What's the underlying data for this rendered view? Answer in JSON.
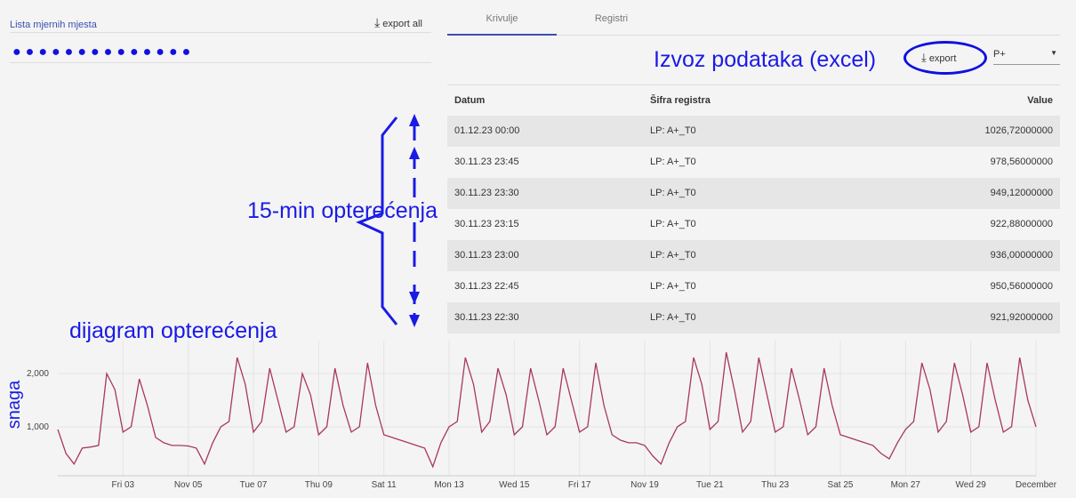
{
  "sidebar": {
    "title": "Lista mjernih mjesta",
    "export_all": "export all"
  },
  "tabs": [
    "Krivulje",
    "Registri"
  ],
  "toolbar": {
    "export": "export",
    "select": "P+"
  },
  "table": {
    "headers": [
      "Datum",
      "Šifra registra",
      "Value"
    ],
    "rows": [
      [
        "01.12.23 00:00",
        "LP: A+_T0",
        "1026,72000000"
      ],
      [
        "30.11.23 23:45",
        "LP: A+_T0",
        "978,56000000"
      ],
      [
        "30.11.23 23:30",
        "LP: A+_T0",
        "949,12000000"
      ],
      [
        "30.11.23 23:15",
        "LP: A+_T0",
        "922,88000000"
      ],
      [
        "30.11.23 23:00",
        "LP: A+_T0",
        "936,00000000"
      ],
      [
        "30.11.23 22:45",
        "LP: A+_T0",
        "950,56000000"
      ],
      [
        "30.11.23 22:30",
        "LP: A+_T0",
        "921,92000000"
      ]
    ]
  },
  "annotations": {
    "export": "Izvoz podataka (excel)",
    "table": "15-min opterećenja",
    "chart": "dijagram opterećenja"
  },
  "chart_data": {
    "type": "line",
    "ylabel": "snaga",
    "x": [
      0,
      0.25,
      0.5,
      0.75,
      1,
      1.25,
      1.5,
      1.75,
      2,
      2.25,
      2.5,
      2.75,
      3,
      3.25,
      3.5,
      3.75,
      4,
      4.25,
      4.5,
      4.75,
      5,
      5.25,
      5.5,
      5.75,
      6,
      6.25,
      6.5,
      6.75,
      7,
      7.25,
      7.5,
      7.75,
      8,
      8.25,
      8.5,
      8.75,
      9,
      9.25,
      9.5,
      9.75,
      10,
      10.25,
      10.5,
      10.75,
      11,
      11.25,
      11.5,
      11.75,
      12,
      12.25,
      12.5,
      12.75,
      13,
      13.25,
      13.5,
      13.75,
      14,
      14.25,
      14.5,
      14.75,
      15,
      15.25,
      15.5,
      15.75,
      16,
      16.25,
      16.5,
      16.75,
      17,
      17.25,
      17.5,
      17.75,
      18,
      18.25,
      18.5,
      18.75,
      19,
      19.25,
      19.5,
      19.75,
      20,
      20.25,
      20.5,
      20.75,
      21,
      21.25,
      21.5,
      21.75,
      22,
      22.25,
      22.5,
      22.75,
      23,
      23.25,
      23.5,
      23.75,
      24,
      24.25,
      24.5,
      24.75,
      25,
      25.25,
      25.5,
      25.75,
      26,
      26.25,
      26.5,
      26.75,
      27,
      27.25,
      27.5,
      27.75,
      28,
      28.25,
      28.5,
      28.75,
      29,
      29.25,
      29.5,
      29.75,
      30
    ],
    "series": [
      {
        "color": "#a8385a",
        "values": [
          950,
          500,
          300,
          600,
          620,
          650,
          2000,
          1700,
          900,
          1000,
          1900,
          1400,
          800,
          700,
          650,
          650,
          640,
          600,
          300,
          700,
          1000,
          1100,
          2300,
          1800,
          900,
          1100,
          2100,
          1500,
          900,
          1000,
          2000,
          1600,
          850,
          1000,
          2100,
          1400,
          900,
          1000,
          2200,
          1400,
          850,
          800,
          750,
          700,
          650,
          600,
          250,
          700,
          1000,
          1100,
          2300,
          1800,
          900,
          1100,
          2100,
          1600,
          850,
          1000,
          2100,
          1500,
          850,
          1000,
          2100,
          1500,
          900,
          1000,
          2200,
          1400,
          850,
          750,
          700,
          700,
          650,
          450,
          300,
          700,
          1000,
          1100,
          2300,
          1800,
          950,
          1100,
          2400,
          1700,
          900,
          1100,
          2300,
          1600,
          900,
          1000,
          2100,
          1500,
          850,
          1000,
          2100,
          1400,
          850,
          800,
          750,
          700,
          650,
          500,
          400,
          700,
          950,
          1100,
          2200,
          1700,
          900,
          1100,
          2200,
          1600,
          900,
          1000,
          2200,
          1500,
          900,
          1000,
          2300,
          1500,
          1000
        ]
      }
    ],
    "xlim": [
      0,
      30
    ],
    "xticks": [
      {
        "value": 2,
        "label": "Fri 03"
      },
      {
        "value": 4,
        "label": "Nov 05"
      },
      {
        "value": 6,
        "label": "Tue 07"
      },
      {
        "value": 8,
        "label": "Thu 09"
      },
      {
        "value": 10,
        "label": "Sat 11"
      },
      {
        "value": 12,
        "label": "Mon 13"
      },
      {
        "value": 14,
        "label": "Wed 15"
      },
      {
        "value": 16,
        "label": "Fri 17"
      },
      {
        "value": 18,
        "label": "Nov 19"
      },
      {
        "value": 20,
        "label": "Tue 21"
      },
      {
        "value": 22,
        "label": "Thu 23"
      },
      {
        "value": 24,
        "label": "Sat 25"
      },
      {
        "value": 26,
        "label": "Mon 27"
      },
      {
        "value": 28,
        "label": "Wed 29"
      },
      {
        "value": 30,
        "label": "December"
      }
    ],
    "ylim": [
      80,
      2620
    ],
    "yticks": [
      {
        "value": 1000,
        "label": "1,000"
      },
      {
        "value": 2000,
        "label": "2,000"
      }
    ],
    "grid": true
  }
}
